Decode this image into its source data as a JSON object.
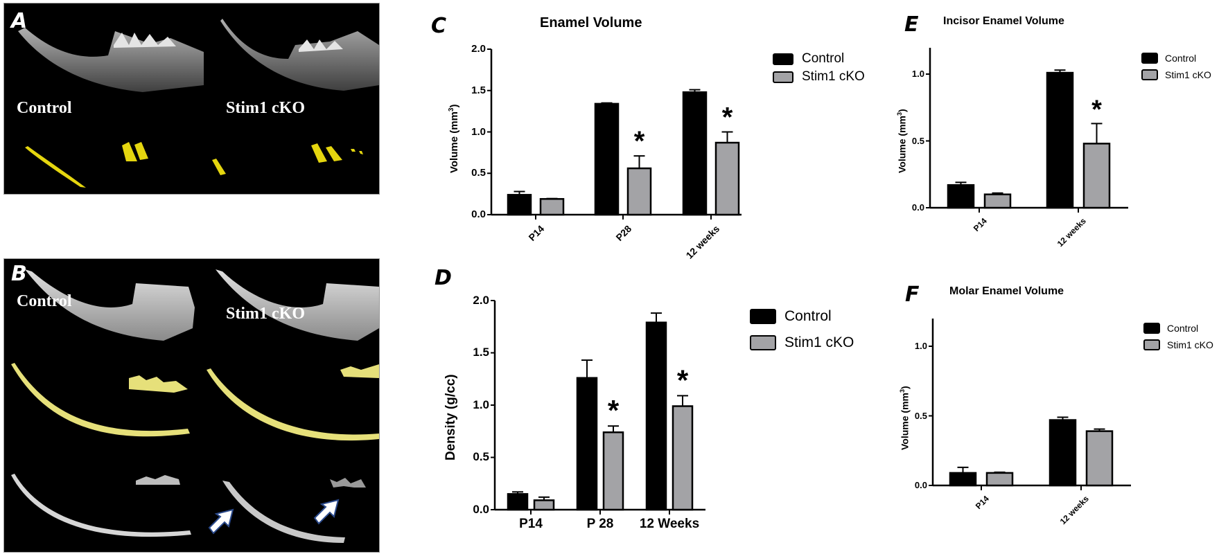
{
  "panels": {
    "A": {
      "letter": "A",
      "labels": {
        "control": "Control",
        "cko": "Stim1 cKO"
      }
    },
    "B": {
      "letter": "B",
      "labels": {
        "control": "Control",
        "cko": "Stim1 cKO"
      }
    },
    "C": {
      "letter": "C"
    },
    "D": {
      "letter": "D"
    },
    "E": {
      "letter": "E"
    },
    "F": {
      "letter": "F"
    }
  },
  "legend": {
    "control": "Control",
    "cko": "Stim1 cKO"
  },
  "colors": {
    "control": "#000000",
    "cko": "#a3a3a6"
  },
  "charts": {
    "C": {
      "title": "Enamel Volume",
      "ylabel": "Volume (mm",
      "ylabel_sup": "3",
      "ylabel_end": ")",
      "yticks": [
        "2.0",
        "1.5",
        "1.0",
        "0.5",
        "0.0"
      ],
      "xticks": [
        "P14",
        "P28",
        "12 weeks"
      ]
    },
    "D": {
      "title": "",
      "ylabel": "Density (g/cc)",
      "yticks": [
        "2.0",
        "1.5",
        "1.0",
        "0.5",
        "0.0"
      ],
      "xticks": [
        "P14",
        "P 28",
        "12 Weeks"
      ]
    },
    "E": {
      "title": "Incisor Enamel Volume",
      "ylabel": "Volume (mm",
      "ylabel_sup": "3",
      "ylabel_end": ")",
      "yticks": [
        "1.0",
        "0.5",
        "0.0"
      ],
      "xticks": [
        "P14",
        "12 weeks"
      ]
    },
    "F": {
      "title": "Molar Enamel Volume",
      "ylabel": "Volume (mm",
      "ylabel_sup": "3",
      "ylabel_end": ")",
      "yticks": [
        "1.0",
        "0.5",
        "0.0"
      ],
      "xticks": [
        "P14",
        "12 weeks"
      ]
    }
  },
  "significance_marker": "*",
  "chart_data": [
    {
      "panel": "C",
      "type": "bar",
      "title": "Enamel Volume",
      "xlabel": "",
      "ylabel": "Volume (mm3)",
      "ylim": [
        0,
        2.0
      ],
      "categories": [
        "P14",
        "P28",
        "12 weeks"
      ],
      "series": [
        {
          "name": "Control",
          "values": [
            0.24,
            1.34,
            1.48
          ],
          "errors": [
            0.04,
            0.01,
            0.03
          ]
        },
        {
          "name": "Stim1 cKO",
          "values": [
            0.19,
            0.56,
            0.87
          ],
          "errors": [
            0.005,
            0.15,
            0.13
          ]
        }
      ],
      "annotations": [
        {
          "category": "P28",
          "series": "Stim1 cKO",
          "text": "*"
        },
        {
          "category": "12 weeks",
          "series": "Stim1 cKO",
          "text": "*"
        }
      ],
      "legend_position": "right",
      "grid": false
    },
    {
      "panel": "D",
      "type": "bar",
      "title": "",
      "xlabel": "",
      "ylabel": "Density (g/cc)",
      "ylim": [
        0,
        2.0
      ],
      "categories": [
        "P14",
        "P 28",
        "12 Weeks"
      ],
      "series": [
        {
          "name": "Control",
          "values": [
            0.15,
            1.26,
            1.79
          ],
          "errors": [
            0.02,
            0.17,
            0.09
          ]
        },
        {
          "name": "Stim1 cKO",
          "values": [
            0.09,
            0.74,
            0.99
          ],
          "errors": [
            0.03,
            0.06,
            0.1
          ]
        }
      ],
      "annotations": [
        {
          "category": "P 28",
          "series": "Stim1 cKO",
          "text": "*"
        },
        {
          "category": "12 Weeks",
          "series": "Stim1 cKO",
          "text": "*"
        }
      ],
      "legend_position": "right",
      "grid": false
    },
    {
      "panel": "E",
      "type": "bar",
      "title": "Incisor Enamel Volume",
      "xlabel": "",
      "ylabel": "Volume (mm3)",
      "ylim": [
        0,
        1.2
      ],
      "categories": [
        "P14",
        "12 weeks"
      ],
      "series": [
        {
          "name": "Control",
          "values": [
            0.17,
            1.01
          ],
          "errors": [
            0.02,
            0.02
          ]
        },
        {
          "name": "Stim1 cKO",
          "values": [
            0.1,
            0.48
          ],
          "errors": [
            0.01,
            0.15
          ]
        }
      ],
      "annotations": [
        {
          "category": "12 weeks",
          "series": "Stim1 cKO",
          "text": "*"
        }
      ],
      "legend_position": "right",
      "grid": false
    },
    {
      "panel": "F",
      "type": "bar",
      "title": "Molar Enamel Volume",
      "xlabel": "",
      "ylabel": "Volume (mm3)",
      "ylim": [
        0,
        1.2
      ],
      "categories": [
        "P14",
        "12 weeks"
      ],
      "series": [
        {
          "name": "Control",
          "values": [
            0.09,
            0.47
          ],
          "errors": [
            0.04,
            0.02
          ]
        },
        {
          "name": "Stim1 cKO",
          "values": [
            0.09,
            0.39
          ],
          "errors": [
            0.005,
            0.015
          ]
        }
      ],
      "annotations": [],
      "legend_position": "right",
      "grid": false
    }
  ]
}
